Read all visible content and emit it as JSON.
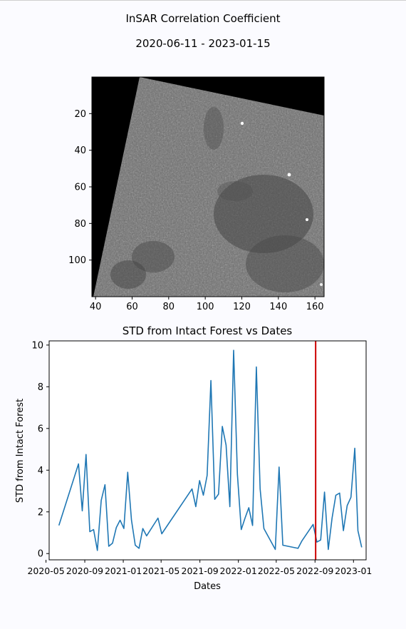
{
  "figure": {
    "title": "InSAR Correlation Coefficient",
    "date_range": "2020-06-11 - 2023-01-15"
  },
  "chart_data": [
    {
      "type": "heatmap",
      "title": "",
      "xlabel": "",
      "ylabel": "",
      "colormap": "gray",
      "xlim": [
        38,
        165
      ],
      "ylim": [
        120,
        0
      ],
      "x_ticks": [
        40,
        60,
        80,
        100,
        120,
        140,
        160
      ],
      "y_ticks": [
        20,
        40,
        60,
        80,
        100
      ],
      "x_tick_labels": [
        "40",
        "60",
        "80",
        "100",
        "120",
        "140",
        "160"
      ],
      "y_tick_labels": [
        "20",
        "40",
        "60",
        "80",
        "100"
      ],
      "background_color": "#000000"
    },
    {
      "type": "line",
      "title": "STD from Intact Forest vs Dates",
      "xlabel": "Dates",
      "ylabel": "STD from Intact Forest",
      "xlim": [
        "2020-05-11",
        "2023-02-10"
      ],
      "ylim": [
        -0.3,
        10.2
      ],
      "grid": false,
      "x_tick_labels": [
        "2020-05",
        "2020-09",
        "2021-01",
        "2021-05",
        "2021-09",
        "2022-01",
        "2022-05",
        "2022-09",
        "2023-01"
      ],
      "x_ticks": [
        "2020-05-01",
        "2020-09-01",
        "2021-01-01",
        "2021-05-01",
        "2021-09-01",
        "2022-01-01",
        "2022-05-01",
        "2022-09-01",
        "2023-01-01"
      ],
      "y_ticks": [
        0,
        2,
        4,
        6,
        8,
        10
      ],
      "y_tick_labels": [
        "0",
        "2",
        "4",
        "6",
        "8",
        "10"
      ],
      "series_color": "#1f77b4",
      "marker_line": {
        "date": "2022-09-03",
        "color": "#cc0000"
      },
      "series": [
        {
          "points": [
            [
              "2020-06-11",
              1.35
            ],
            [
              "2020-08-12",
              4.3
            ],
            [
              "2020-08-24",
              2.05
            ],
            [
              "2020-09-05",
              4.75
            ],
            [
              "2020-09-17",
              1.05
            ],
            [
              "2020-09-29",
              1.15
            ],
            [
              "2020-10-11",
              0.15
            ],
            [
              "2020-10-23",
              2.55
            ],
            [
              "2020-11-04",
              3.3
            ],
            [
              "2020-11-16",
              0.35
            ],
            [
              "2020-11-28",
              0.5
            ],
            [
              "2020-12-10",
              1.25
            ],
            [
              "2020-12-22",
              1.6
            ],
            [
              "2021-01-03",
              1.2
            ],
            [
              "2021-01-15",
              3.9
            ],
            [
              "2021-01-27",
              1.6
            ],
            [
              "2021-02-08",
              0.4
            ],
            [
              "2021-02-20",
              0.25
            ],
            [
              "2021-03-04",
              1.2
            ],
            [
              "2021-03-16",
              0.85
            ],
            [
              "2021-04-21",
              1.7
            ],
            [
              "2021-05-03",
              0.95
            ],
            [
              "2021-08-07",
              3.1
            ],
            [
              "2021-08-19",
              2.25
            ],
            [
              "2021-08-31",
              3.5
            ],
            [
              "2021-09-12",
              2.8
            ],
            [
              "2021-09-24",
              3.75
            ],
            [
              "2021-10-06",
              8.3
            ],
            [
              "2021-10-18",
              2.6
            ],
            [
              "2021-10-30",
              2.85
            ],
            [
              "2021-11-11",
              6.1
            ],
            [
              "2021-11-23",
              5.2
            ],
            [
              "2021-12-05",
              2.25
            ],
            [
              "2021-12-17",
              9.75
            ],
            [
              "2021-12-29",
              3.8
            ],
            [
              "2022-01-10",
              1.15
            ],
            [
              "2022-01-22",
              1.7
            ],
            [
              "2022-02-03",
              2.2
            ],
            [
              "2022-02-15",
              1.35
            ],
            [
              "2022-02-27",
              8.95
            ],
            [
              "2022-03-11",
              3.1
            ],
            [
              "2022-03-23",
              1.2
            ],
            [
              "2022-04-28",
              0.2
            ],
            [
              "2022-05-10",
              4.15
            ],
            [
              "2022-05-22",
              0.4
            ],
            [
              "2022-07-09",
              0.25
            ],
            [
              "2022-07-21",
              0.6
            ],
            [
              "2022-08-26",
              1.4
            ],
            [
              "2022-09-07",
              0.55
            ],
            [
              "2022-09-19",
              0.65
            ],
            [
              "2022-10-01",
              2.95
            ],
            [
              "2022-10-13",
              0.2
            ],
            [
              "2022-10-25",
              1.7
            ],
            [
              "2022-11-06",
              2.8
            ],
            [
              "2022-11-18",
              2.9
            ],
            [
              "2022-11-30",
              1.1
            ],
            [
              "2022-12-12",
              2.3
            ],
            [
              "2022-12-24",
              2.7
            ],
            [
              "2023-01-05",
              5.05
            ],
            [
              "2023-01-15",
              1.1
            ],
            [
              "2023-01-27",
              0.3
            ]
          ]
        }
      ]
    }
  ]
}
